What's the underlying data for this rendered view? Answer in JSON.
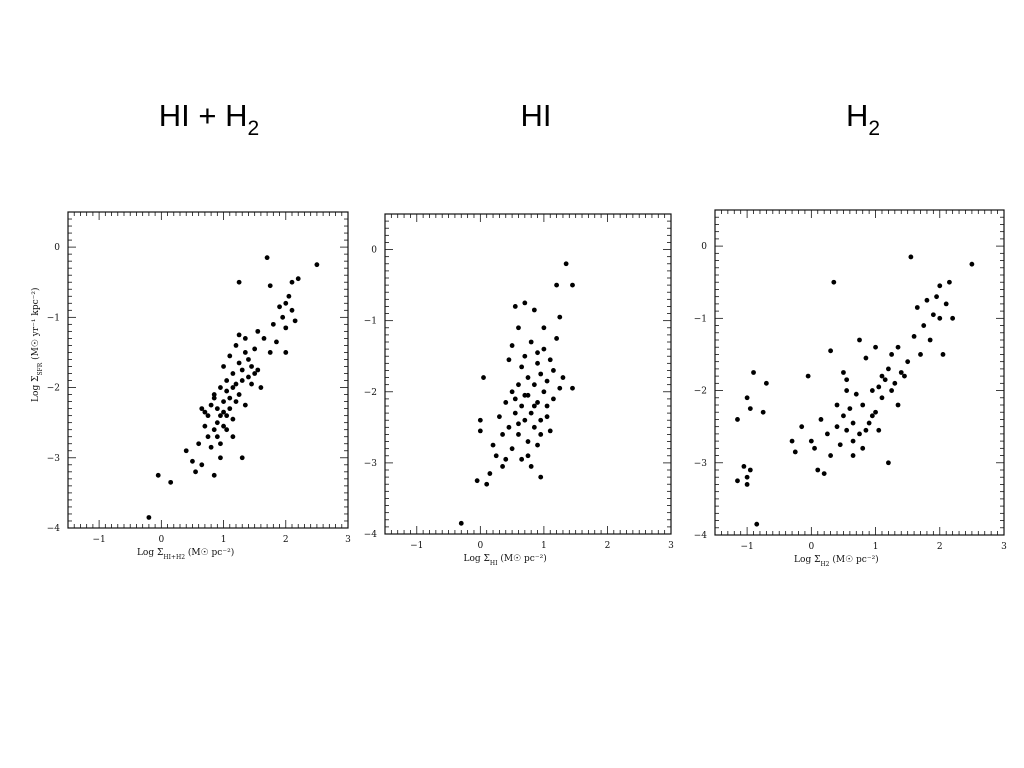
{
  "headings": [
    {
      "main": "HI + H",
      "sub": "2"
    },
    {
      "main": "HI",
      "sub": ""
    },
    {
      "main": "H",
      "sub": "2"
    }
  ],
  "chart_data": [
    {
      "type": "scatter",
      "xlabel": "Log Σ_HI+H2 (M☉ pc⁻²)",
      "ylabel": "Log Σ_SFR (M☉ yr⁻¹ kpc⁻²)",
      "xlim": [
        -1.5,
        3
      ],
      "ylim": [
        -4,
        0.5
      ],
      "xticks": [
        -1,
        0,
        1,
        2,
        3
      ],
      "yticks": [
        -4,
        -3,
        -2,
        -1,
        0
      ],
      "points": [
        [
          -0.2,
          -3.85
        ],
        [
          -0.05,
          -3.25
        ],
        [
          0.15,
          -3.35
        ],
        [
          0.4,
          -2.9
        ],
        [
          0.5,
          -3.05
        ],
        [
          0.55,
          -3.2
        ],
        [
          0.6,
          -2.8
        ],
        [
          0.65,
          -3.1
        ],
        [
          0.7,
          -2.55
        ],
        [
          0.7,
          -2.35
        ],
        [
          0.75,
          -2.7
        ],
        [
          0.75,
          -2.4
        ],
        [
          0.8,
          -2.25
        ],
        [
          0.8,
          -2.85
        ],
        [
          0.85,
          -2.6
        ],
        [
          0.85,
          -2.1
        ],
        [
          0.85,
          -3.25
        ],
        [
          0.9,
          -2.5
        ],
        [
          0.9,
          -2.3
        ],
        [
          0.9,
          -2.7
        ],
        [
          0.95,
          -2.0
        ],
        [
          0.95,
          -2.4
        ],
        [
          0.95,
          -2.8
        ],
        [
          1.0,
          -2.2
        ],
        [
          1.0,
          -1.7
        ],
        [
          1.0,
          -2.55
        ],
        [
          1.0,
          -2.35
        ],
        [
          1.05,
          -1.9
        ],
        [
          1.05,
          -2.4
        ],
        [
          1.05,
          -2.05
        ],
        [
          1.1,
          -2.3
        ],
        [
          1.1,
          -1.55
        ],
        [
          1.1,
          -2.15
        ],
        [
          1.15,
          -1.8
        ],
        [
          1.15,
          -2.0
        ],
        [
          1.15,
          -2.45
        ],
        [
          1.2,
          -1.4
        ],
        [
          1.2,
          -2.2
        ],
        [
          1.2,
          -1.95
        ],
        [
          1.25,
          -1.25
        ],
        [
          1.25,
          -2.1
        ],
        [
          1.25,
          -1.65
        ],
        [
          1.25,
          -0.5
        ],
        [
          1.3,
          -1.75
        ],
        [
          1.3,
          -1.9
        ],
        [
          1.3,
          -3.0
        ],
        [
          1.35,
          -1.3
        ],
        [
          1.35,
          -1.5
        ],
        [
          1.35,
          -2.25
        ],
        [
          1.4,
          -1.85
        ],
        [
          1.4,
          -1.6
        ],
        [
          1.45,
          -1.95
        ],
        [
          1.45,
          -1.7
        ],
        [
          1.5,
          -1.8
        ],
        [
          1.5,
          -1.45
        ],
        [
          1.55,
          -1.2
        ],
        [
          1.55,
          -1.75
        ],
        [
          1.6,
          -2.0
        ],
        [
          1.65,
          -1.3
        ],
        [
          1.7,
          -0.15
        ],
        [
          1.75,
          -0.55
        ],
        [
          1.75,
          -1.5
        ],
        [
          1.8,
          -1.1
        ],
        [
          1.85,
          -1.35
        ],
        [
          1.9,
          -0.85
        ],
        [
          1.95,
          -1.0
        ],
        [
          2.0,
          -0.8
        ],
        [
          2.0,
          -1.15
        ],
        [
          2.0,
          -1.5
        ],
        [
          2.05,
          -0.7
        ],
        [
          2.1,
          -0.5
        ],
        [
          2.1,
          -0.9
        ],
        [
          2.15,
          -1.05
        ],
        [
          2.2,
          -0.45
        ],
        [
          2.5,
          -0.25
        ],
        [
          0.95,
          -3.0
        ],
        [
          0.65,
          -2.3
        ],
        [
          1.15,
          -2.7
        ],
        [
          0.85,
          -2.15
        ],
        [
          1.05,
          -2.6
        ]
      ]
    },
    {
      "type": "scatter",
      "xlabel": "Log Σ_HI (M☉ pc⁻²)",
      "ylabel": "",
      "xlim": [
        -1.5,
        3
      ],
      "ylim": [
        -4,
        0.5
      ],
      "xticks": [
        -1,
        0,
        1,
        2,
        3
      ],
      "yticks": [
        -4,
        -3,
        -2,
        -1,
        0
      ],
      "points": [
        [
          -0.3,
          -3.85
        ],
        [
          -0.05,
          -3.25
        ],
        [
          0.0,
          -2.4
        ],
        [
          0.0,
          -2.55
        ],
        [
          0.05,
          -1.8
        ],
        [
          0.1,
          -3.3
        ],
        [
          0.15,
          -3.15
        ],
        [
          0.2,
          -2.75
        ],
        [
          0.25,
          -2.9
        ],
        [
          0.3,
          -2.35
        ],
        [
          0.35,
          -2.6
        ],
        [
          0.35,
          -3.05
        ],
        [
          0.4,
          -2.15
        ],
        [
          0.45,
          -1.55
        ],
        [
          0.45,
          -2.5
        ],
        [
          0.5,
          -2.0
        ],
        [
          0.5,
          -2.8
        ],
        [
          0.5,
          -1.35
        ],
        [
          0.55,
          -2.3
        ],
        [
          0.55,
          -0.8
        ],
        [
          0.6,
          -1.9
        ],
        [
          0.6,
          -2.6
        ],
        [
          0.6,
          -1.1
        ],
        [
          0.65,
          -2.2
        ],
        [
          0.65,
          -2.95
        ],
        [
          0.65,
          -1.65
        ],
        [
          0.7,
          -2.4
        ],
        [
          0.7,
          -1.5
        ],
        [
          0.7,
          -0.75
        ],
        [
          0.75,
          -2.05
        ],
        [
          0.75,
          -2.7
        ],
        [
          0.75,
          -1.8
        ],
        [
          0.8,
          -2.3
        ],
        [
          0.8,
          -1.3
        ],
        [
          0.8,
          -3.05
        ],
        [
          0.85,
          -2.5
        ],
        [
          0.85,
          -1.9
        ],
        [
          0.85,
          -0.85
        ],
        [
          0.9,
          -2.15
        ],
        [
          0.9,
          -1.6
        ],
        [
          0.9,
          -2.75
        ],
        [
          0.95,
          -1.75
        ],
        [
          0.95,
          -2.4
        ],
        [
          0.95,
          -3.2
        ],
        [
          1.0,
          -1.1
        ],
        [
          1.0,
          -2.0
        ],
        [
          1.0,
          -1.4
        ],
        [
          1.05,
          -2.2
        ],
        [
          1.05,
          -1.85
        ],
        [
          1.1,
          -1.55
        ],
        [
          1.1,
          -2.55
        ],
        [
          1.15,
          -1.7
        ],
        [
          1.15,
          -2.1
        ],
        [
          1.2,
          -0.5
        ],
        [
          1.2,
          -1.25
        ],
        [
          1.25,
          -1.95
        ],
        [
          1.25,
          -0.95
        ],
        [
          1.3,
          -1.8
        ],
        [
          1.35,
          -0.2
        ],
        [
          1.45,
          -0.5
        ],
        [
          1.45,
          -1.95
        ],
        [
          0.7,
          -2.05
        ],
        [
          0.85,
          -2.2
        ],
        [
          0.95,
          -2.6
        ],
        [
          0.6,
          -2.45
        ],
        [
          0.75,
          -2.9
        ],
        [
          0.9,
          -1.45
        ],
        [
          1.05,
          -2.35
        ],
        [
          0.4,
          -2.95
        ],
        [
          0.55,
          -2.1
        ]
      ]
    },
    {
      "type": "scatter",
      "xlabel": "Log Σ_H2 (M☉ pc⁻²)",
      "ylabel": "",
      "xlim": [
        -1.5,
        3
      ],
      "ylim": [
        -4,
        0.5
      ],
      "xticks": [
        -1,
        0,
        1,
        2,
        3
      ],
      "yticks": [
        -4,
        -3,
        -2,
        -1,
        0
      ],
      "points": [
        [
          -1.15,
          -3.25
        ],
        [
          -1.15,
          -2.4
        ],
        [
          -1.05,
          -3.05
        ],
        [
          -1.0,
          -3.2
        ],
        [
          -1.0,
          -3.3
        ],
        [
          -1.0,
          -2.1
        ],
        [
          -0.95,
          -3.1
        ],
        [
          -0.95,
          -2.25
        ],
        [
          -0.85,
          -3.85
        ],
        [
          -0.9,
          -1.75
        ],
        [
          -0.7,
          -1.9
        ],
        [
          -0.75,
          -2.3
        ],
        [
          -0.3,
          -2.7
        ],
        [
          -0.25,
          -2.85
        ],
        [
          -0.15,
          -2.5
        ],
        [
          -0.05,
          -1.8
        ],
        [
          0.0,
          -2.7
        ],
        [
          0.05,
          -2.8
        ],
        [
          0.1,
          -3.1
        ],
        [
          0.15,
          -2.4
        ],
        [
          0.2,
          -3.15
        ],
        [
          0.25,
          -2.6
        ],
        [
          0.3,
          -1.45
        ],
        [
          0.3,
          -2.9
        ],
        [
          0.35,
          -0.5
        ],
        [
          0.4,
          -2.5
        ],
        [
          0.4,
          -2.2
        ],
        [
          0.45,
          -2.75
        ],
        [
          0.5,
          -2.35
        ],
        [
          0.5,
          -1.75
        ],
        [
          0.55,
          -2.55
        ],
        [
          0.55,
          -1.85
        ],
        [
          0.6,
          -2.25
        ],
        [
          0.65,
          -2.9
        ],
        [
          0.65,
          -2.45
        ],
        [
          0.7,
          -2.05
        ],
        [
          0.75,
          -2.6
        ],
        [
          0.75,
          -1.3
        ],
        [
          0.8,
          -2.8
        ],
        [
          0.8,
          -2.2
        ],
        [
          0.85,
          -1.55
        ],
        [
          0.9,
          -2.45
        ],
        [
          0.95,
          -2.0
        ],
        [
          1.0,
          -1.4
        ],
        [
          1.0,
          -2.3
        ],
        [
          1.05,
          -1.95
        ],
        [
          1.05,
          -2.55
        ],
        [
          1.1,
          -1.8
        ],
        [
          1.1,
          -2.1
        ],
        [
          1.15,
          -1.85
        ],
        [
          1.2,
          -3.0
        ],
        [
          1.2,
          -1.7
        ],
        [
          1.25,
          -2.0
        ],
        [
          1.25,
          -1.5
        ],
        [
          1.3,
          -1.9
        ],
        [
          1.35,
          -1.4
        ],
        [
          1.35,
          -2.2
        ],
        [
          1.4,
          -1.75
        ],
        [
          1.45,
          -1.8
        ],
        [
          1.5,
          -1.6
        ],
        [
          1.55,
          -0.15
        ],
        [
          1.6,
          -1.25
        ],
        [
          1.65,
          -0.85
        ],
        [
          1.7,
          -1.5
        ],
        [
          1.75,
          -1.1
        ],
        [
          1.8,
          -0.75
        ],
        [
          1.85,
          -1.3
        ],
        [
          1.9,
          -0.95
        ],
        [
          1.95,
          -0.7
        ],
        [
          2.0,
          -1.0
        ],
        [
          2.0,
          -0.55
        ],
        [
          2.05,
          -1.5
        ],
        [
          2.1,
          -0.8
        ],
        [
          2.15,
          -0.5
        ],
        [
          2.2,
          -1.0
        ],
        [
          2.5,
          -0.25
        ],
        [
          0.55,
          -2.0
        ],
        [
          0.85,
          -2.55
        ],
        [
          0.95,
          -2.35
        ],
        [
          0.65,
          -2.7
        ]
      ]
    }
  ]
}
